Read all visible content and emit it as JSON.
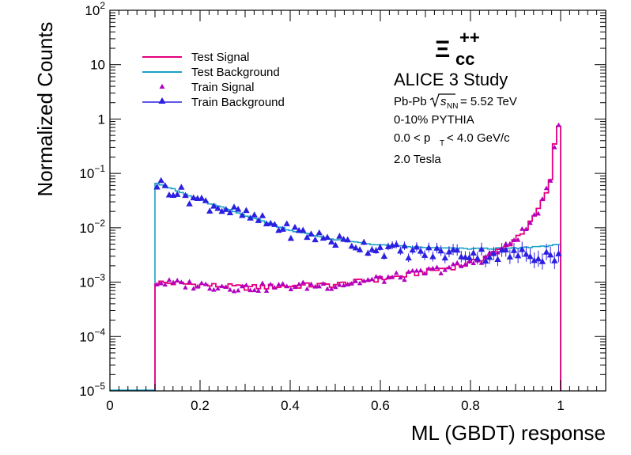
{
  "chart_data": {
    "type": "histogram",
    "xlabel": "ML (GBDT) response",
    "ylabel": "Normalized Counts",
    "xlim": [
      0,
      1.1
    ],
    "ylim": [
      1e-05,
      100
    ],
    "log_y": true,
    "x_ticks": [
      "0",
      "0.2",
      "0.4",
      "0.6",
      "0.8",
      "1"
    ],
    "y_ticks": [
      {
        "base": "10",
        "exp": "−5"
      },
      {
        "base": "10",
        "exp": "−4"
      },
      {
        "base": "10",
        "exp": "−3"
      },
      {
        "base": "10",
        "exp": "−2"
      },
      {
        "base": "10",
        "exp": "−1"
      },
      {
        "base": "1",
        "exp": ""
      },
      {
        "base": "10",
        "exp": ""
      },
      {
        "base": "10",
        "exp": "2"
      }
    ],
    "bin_range": [
      0.1,
      1.0
    ],
    "n_bins": 100,
    "colors": {
      "test_signal": "#e6007e",
      "test_background": "#1aa2c6",
      "train_signal": "#b000c0",
      "train_background": "#2b1fe0"
    },
    "series": [
      {
        "name": "Test Signal",
        "style": "line",
        "anchors": [
          [
            0.1,
            0.001
          ],
          [
            0.3,
            0.0008
          ],
          [
            0.5,
            0.0009
          ],
          [
            0.65,
            0.0013
          ],
          [
            0.8,
            0.0022
          ],
          [
            0.88,
            0.0045
          ],
          [
            0.93,
            0.011
          ],
          [
            0.96,
            0.03
          ],
          [
            0.98,
            0.08
          ],
          [
            0.99,
            0.78
          ]
        ]
      },
      {
        "name": "Test Background",
        "style": "line",
        "anchors": [
          [
            0.1,
            0.07
          ],
          [
            0.2,
            0.032
          ],
          [
            0.3,
            0.017
          ],
          [
            0.4,
            0.009
          ],
          [
            0.5,
            0.006
          ],
          [
            0.6,
            0.0048
          ],
          [
            0.7,
            0.0043
          ],
          [
            0.8,
            0.0041
          ],
          [
            0.9,
            0.0042
          ],
          [
            0.99,
            0.0048
          ]
        ]
      },
      {
        "name": "Train Signal",
        "style": "markers",
        "anchors": [
          [
            0.1,
            0.001
          ],
          [
            0.3,
            0.0008
          ],
          [
            0.5,
            0.0009
          ],
          [
            0.65,
            0.0013
          ],
          [
            0.8,
            0.0022
          ],
          [
            0.88,
            0.0045
          ],
          [
            0.93,
            0.011
          ],
          [
            0.96,
            0.03
          ],
          [
            0.98,
            0.08
          ],
          [
            0.99,
            0.78
          ]
        ]
      },
      {
        "name": "Train Background",
        "style": "markers_line",
        "anchors": [
          [
            0.1,
            0.07
          ],
          [
            0.2,
            0.032
          ],
          [
            0.3,
            0.017
          ],
          [
            0.4,
            0.009
          ],
          [
            0.5,
            0.006
          ],
          [
            0.6,
            0.0042
          ],
          [
            0.7,
            0.0036
          ],
          [
            0.8,
            0.0034
          ],
          [
            0.9,
            0.0033
          ],
          [
            0.99,
            0.0032
          ]
        ]
      }
    ],
    "legend_position": "top-left"
  },
  "annotation": {
    "particle_symbol": "Ξ",
    "particle_sub": "cc",
    "particle_sup": "++",
    "title": "ALICE 3 Study",
    "system_prefix": "Pb-Pb",
    "sqrt_s": "s",
    "sqrt_s_sub": "NN",
    "energy": "= 5.52 TeV",
    "centrality": "0-10% PYTHIA",
    "pt_prefix": "0.0 < p",
    "pt_sub": "T",
    "pt_suffix": "< 4.0 GeV/c",
    "field": "2.0 Tesla"
  }
}
